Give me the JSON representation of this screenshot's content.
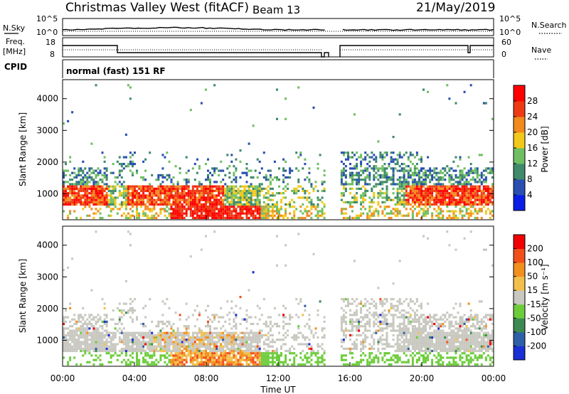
{
  "header": {
    "title": "Christmas Valley West (fitACF)",
    "beam": "Beam 13",
    "date": "21/May/2019"
  },
  "strip_labels": {
    "nsky": "N.Sky",
    "nsearch": "N.Search",
    "freq": "Freq.",
    "freq_unit": "[MHz]",
    "nave": "Nave",
    "cpid": "CPID",
    "mode": "normal (fast) 151 RF",
    "nsky_ticks": [
      "10^5",
      "10^0"
    ],
    "nsearch_ticks": [
      "10^5",
      "10^0"
    ],
    "freq_ticks": [
      "18",
      "8"
    ],
    "nave_ticks": [
      "60",
      "0"
    ]
  },
  "chart_data": [
    {
      "type": "heatmap",
      "quantity": "power",
      "xlabel": "",
      "ylabel": "Slant Range [km]",
      "xlim": [
        0,
        24
      ],
      "ylim": [
        180,
        4600
      ],
      "yticks": [
        "1000",
        "2000",
        "3000",
        "4000"
      ],
      "colorbar": {
        "label": "Power [dB]",
        "ticks": [
          "4",
          "8",
          "12",
          "16",
          "20",
          "24",
          "28"
        ],
        "colors": [
          "#0a1ee6",
          "#2a4fb0",
          "#3f8a6a",
          "#6fbf62",
          "#f2c81a",
          "#f28a1e",
          "#ee3a12",
          "#ff0000"
        ]
      }
    },
    {
      "type": "heatmap",
      "quantity": "velocity",
      "xlabel": "Time UT",
      "ylabel": "Slant Range [km]",
      "xlim": [
        0,
        24
      ],
      "ylim": [
        180,
        4600
      ],
      "yticks": [
        "1000",
        "2000",
        "3000",
        "4000"
      ],
      "xticks": [
        "00:00",
        "04:00",
        "08:00",
        "12:00",
        "16:00",
        "20:00",
        "00:00"
      ],
      "colorbar": {
        "label": "Velocity [m s⁻¹]",
        "ticks": [
          "200",
          "100",
          "50",
          "15",
          "-15",
          "-50",
          "-100",
          "-200"
        ],
        "colors": [
          "#1a2fd6",
          "#2f5fa6",
          "#3c8a52",
          "#6ccc3a",
          "#c8c8c0",
          "#f2c04a",
          "#f2901e",
          "#f2501a",
          "#f00000"
        ]
      }
    }
  ],
  "scatter_summary": {
    "gap_intervals_ut": [
      [
        14.6,
        15.4
      ]
    ],
    "main_band_km": [
      600,
      1200
    ],
    "mid_band_km": [
      1100,
      1800
    ],
    "near_band_km": [
      200,
      600
    ]
  }
}
